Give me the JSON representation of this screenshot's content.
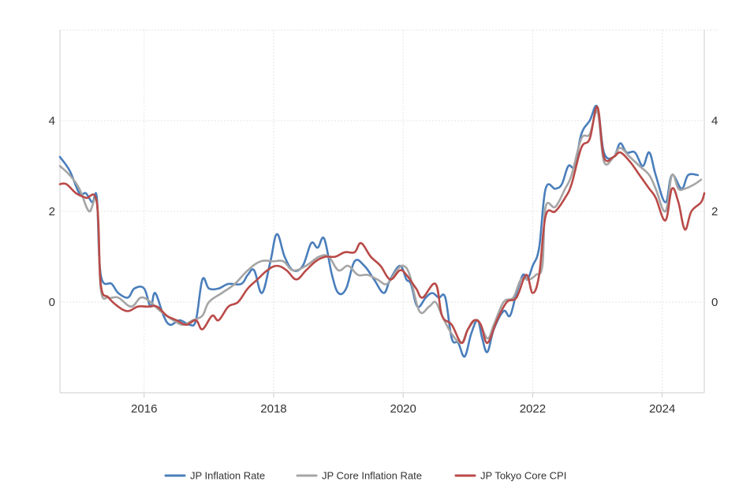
{
  "chart_data": {
    "type": "line",
    "title": "",
    "xlabel": "",
    "ylabel": "",
    "xlim": [
      2014.7,
      2024.65
    ],
    "ylim": [
      -2.0,
      6.0
    ],
    "x_ticks": [
      2016,
      2018,
      2020,
      2022,
      2024
    ],
    "x_tick_labels": [
      "2016",
      "2018",
      "2020",
      "2022",
      "2024"
    ],
    "y_ticks": [
      0,
      2,
      4
    ],
    "y_tick_labels": [
      "0",
      "2",
      "4"
    ],
    "grid": true,
    "dual_y_axis_labels": true,
    "legend_position": "bottom",
    "series": [
      {
        "name": "JP Inflation Rate",
        "color": "#4a7ebb",
        "points": [
          [
            2014.7,
            3.2
          ],
          [
            2014.85,
            2.9
          ],
          [
            2015.0,
            2.4
          ],
          [
            2015.1,
            2.4
          ],
          [
            2015.2,
            2.2
          ],
          [
            2015.27,
            2.3
          ],
          [
            2015.33,
            0.6
          ],
          [
            2015.5,
            0.4
          ],
          [
            2015.6,
            0.2
          ],
          [
            2015.75,
            0.1
          ],
          [
            2015.85,
            0.3
          ],
          [
            2016.0,
            0.3
          ],
          [
            2016.1,
            -0.1
          ],
          [
            2016.17,
            0.2
          ],
          [
            2016.3,
            -0.3
          ],
          [
            2016.4,
            -0.5
          ],
          [
            2016.55,
            -0.4
          ],
          [
            2016.7,
            -0.5
          ],
          [
            2016.8,
            -0.4
          ],
          [
            2016.9,
            0.5
          ],
          [
            2017.0,
            0.3
          ],
          [
            2017.15,
            0.3
          ],
          [
            2017.3,
            0.4
          ],
          [
            2017.5,
            0.4
          ],
          [
            2017.6,
            0.6
          ],
          [
            2017.7,
            0.7
          ],
          [
            2017.82,
            0.2
          ],
          [
            2017.95,
            0.9
          ],
          [
            2018.05,
            1.5
          ],
          [
            2018.17,
            1.0
          ],
          [
            2018.3,
            0.7
          ],
          [
            2018.45,
            0.8
          ],
          [
            2018.58,
            1.3
          ],
          [
            2018.68,
            1.2
          ],
          [
            2018.78,
            1.4
          ],
          [
            2018.9,
            0.6
          ],
          [
            2019.0,
            0.2
          ],
          [
            2019.12,
            0.3
          ],
          [
            2019.25,
            0.9
          ],
          [
            2019.4,
            0.8
          ],
          [
            2019.55,
            0.5
          ],
          [
            2019.7,
            0.2
          ],
          [
            2019.8,
            0.5
          ],
          [
            2019.95,
            0.8
          ],
          [
            2020.05,
            0.5
          ],
          [
            2020.12,
            0.4
          ],
          [
            2020.22,
            -0.1
          ],
          [
            2020.35,
            0.1
          ],
          [
            2020.45,
            0.2
          ],
          [
            2020.55,
            0.1
          ],
          [
            2020.65,
            0.1
          ],
          [
            2020.75,
            -0.8
          ],
          [
            2020.85,
            -0.9
          ],
          [
            2020.95,
            -1.2
          ],
          [
            2021.05,
            -0.7
          ],
          [
            2021.15,
            -0.4
          ],
          [
            2021.22,
            -0.8
          ],
          [
            2021.3,
            -1.1
          ],
          [
            2021.4,
            -0.6
          ],
          [
            2021.55,
            -0.2
          ],
          [
            2021.65,
            -0.3
          ],
          [
            2021.75,
            0.2
          ],
          [
            2021.85,
            0.6
          ],
          [
            2021.92,
            0.5
          ],
          [
            2022.0,
            0.8
          ],
          [
            2022.1,
            1.2
          ],
          [
            2022.2,
            2.5
          ],
          [
            2022.35,
            2.5
          ],
          [
            2022.45,
            2.6
          ],
          [
            2022.55,
            3.0
          ],
          [
            2022.65,
            3.0
          ],
          [
            2022.75,
            3.7
          ],
          [
            2022.88,
            4.0
          ],
          [
            2023.0,
            4.3
          ],
          [
            2023.1,
            3.3
          ],
          [
            2023.25,
            3.2
          ],
          [
            2023.35,
            3.5
          ],
          [
            2023.45,
            3.3
          ],
          [
            2023.58,
            3.3
          ],
          [
            2023.7,
            3.0
          ],
          [
            2023.8,
            3.3
          ],
          [
            2023.9,
            2.8
          ],
          [
            2024.05,
            2.2
          ],
          [
            2024.15,
            2.8
          ],
          [
            2024.3,
            2.5
          ],
          [
            2024.4,
            2.8
          ],
          [
            2024.55,
            2.8
          ]
        ]
      },
      {
        "name": "JP Core Inflation Rate",
        "color": "#a5a5a5",
        "points": [
          [
            2014.7,
            3.0
          ],
          [
            2014.85,
            2.8
          ],
          [
            2015.0,
            2.5
          ],
          [
            2015.15,
            2.0
          ],
          [
            2015.27,
            2.2
          ],
          [
            2015.33,
            0.3
          ],
          [
            2015.45,
            0.1
          ],
          [
            2015.6,
            0.1
          ],
          [
            2015.8,
            -0.1
          ],
          [
            2015.95,
            0.1
          ],
          [
            2016.1,
            0.0
          ],
          [
            2016.25,
            -0.2
          ],
          [
            2016.45,
            -0.4
          ],
          [
            2016.6,
            -0.5
          ],
          [
            2016.75,
            -0.4
          ],
          [
            2016.9,
            -0.3
          ],
          [
            2017.0,
            0.0
          ],
          [
            2017.2,
            0.2
          ],
          [
            2017.4,
            0.4
          ],
          [
            2017.6,
            0.7
          ],
          [
            2017.8,
            0.9
          ],
          [
            2018.0,
            0.9
          ],
          [
            2018.15,
            0.9
          ],
          [
            2018.3,
            0.7
          ],
          [
            2018.5,
            0.8
          ],
          [
            2018.7,
            1.0
          ],
          [
            2018.85,
            1.0
          ],
          [
            2019.0,
            0.7
          ],
          [
            2019.15,
            0.8
          ],
          [
            2019.3,
            0.6
          ],
          [
            2019.45,
            0.6
          ],
          [
            2019.6,
            0.5
          ],
          [
            2019.75,
            0.4
          ],
          [
            2019.9,
            0.7
          ],
          [
            2020.0,
            0.8
          ],
          [
            2020.1,
            0.6
          ],
          [
            2020.25,
            -0.2
          ],
          [
            2020.4,
            -0.1
          ],
          [
            2020.5,
            0.0
          ],
          [
            2020.6,
            -0.3
          ],
          [
            2020.75,
            -0.7
          ],
          [
            2020.9,
            -0.9
          ],
          [
            2021.0,
            -0.6
          ],
          [
            2021.15,
            -0.4
          ],
          [
            2021.3,
            -0.8
          ],
          [
            2021.4,
            -0.5
          ],
          [
            2021.55,
            0.0
          ],
          [
            2021.7,
            0.1
          ],
          [
            2021.82,
            0.5
          ],
          [
            2021.95,
            0.5
          ],
          [
            2022.05,
            0.6
          ],
          [
            2022.15,
            0.8
          ],
          [
            2022.2,
            2.1
          ],
          [
            2022.35,
            2.1
          ],
          [
            2022.5,
            2.5
          ],
          [
            2022.6,
            2.8
          ],
          [
            2022.75,
            3.6
          ],
          [
            2022.88,
            3.7
          ],
          [
            2023.0,
            4.2
          ],
          [
            2023.1,
            3.1
          ],
          [
            2023.25,
            3.2
          ],
          [
            2023.35,
            3.4
          ],
          [
            2023.5,
            3.2
          ],
          [
            2023.65,
            3.0
          ],
          [
            2023.8,
            2.8
          ],
          [
            2023.9,
            2.5
          ],
          [
            2024.05,
            2.0
          ],
          [
            2024.15,
            2.8
          ],
          [
            2024.25,
            2.5
          ],
          [
            2024.35,
            2.5
          ],
          [
            2024.5,
            2.6
          ],
          [
            2024.6,
            2.7
          ]
        ]
      },
      {
        "name": "JP Tokyo Core CPI",
        "color": "#b94a48",
        "points": [
          [
            2014.7,
            2.6
          ],
          [
            2014.8,
            2.6
          ],
          [
            2014.95,
            2.4
          ],
          [
            2015.1,
            2.3
          ],
          [
            2015.27,
            2.2
          ],
          [
            2015.33,
            0.4
          ],
          [
            2015.45,
            0.1
          ],
          [
            2015.6,
            -0.1
          ],
          [
            2015.75,
            -0.2
          ],
          [
            2015.9,
            -0.1
          ],
          [
            2016.05,
            -0.1
          ],
          [
            2016.2,
            -0.1
          ],
          [
            2016.35,
            -0.3
          ],
          [
            2016.5,
            -0.4
          ],
          [
            2016.65,
            -0.5
          ],
          [
            2016.8,
            -0.4
          ],
          [
            2016.9,
            -0.6
          ],
          [
            2017.05,
            -0.3
          ],
          [
            2017.15,
            -0.4
          ],
          [
            2017.3,
            -0.1
          ],
          [
            2017.45,
            0.0
          ],
          [
            2017.6,
            0.3
          ],
          [
            2017.75,
            0.5
          ],
          [
            2017.9,
            0.7
          ],
          [
            2018.05,
            0.8
          ],
          [
            2018.2,
            0.7
          ],
          [
            2018.35,
            0.5
          ],
          [
            2018.5,
            0.7
          ],
          [
            2018.65,
            0.9
          ],
          [
            2018.8,
            1.0
          ],
          [
            2018.95,
            1.0
          ],
          [
            2019.1,
            1.1
          ],
          [
            2019.25,
            1.1
          ],
          [
            2019.35,
            1.3
          ],
          [
            2019.5,
            1.0
          ],
          [
            2019.65,
            0.8
          ],
          [
            2019.8,
            0.5
          ],
          [
            2019.95,
            0.7
          ],
          [
            2020.05,
            0.6
          ],
          [
            2020.2,
            0.3
          ],
          [
            2020.3,
            0.1
          ],
          [
            2020.5,
            0.4
          ],
          [
            2020.6,
            -0.3
          ],
          [
            2020.75,
            -0.5
          ],
          [
            2020.9,
            -0.9
          ],
          [
            2021.0,
            -0.6
          ],
          [
            2021.1,
            -0.4
          ],
          [
            2021.2,
            -0.5
          ],
          [
            2021.3,
            -0.9
          ],
          [
            2021.45,
            -0.4
          ],
          [
            2021.6,
            0.0
          ],
          [
            2021.75,
            0.1
          ],
          [
            2021.9,
            0.6
          ],
          [
            2022.0,
            0.2
          ],
          [
            2022.1,
            0.6
          ],
          [
            2022.2,
            1.9
          ],
          [
            2022.35,
            2.0
          ],
          [
            2022.5,
            2.3
          ],
          [
            2022.6,
            2.6
          ],
          [
            2022.75,
            3.4
          ],
          [
            2022.88,
            3.6
          ],
          [
            2023.0,
            4.3
          ],
          [
            2023.1,
            3.2
          ],
          [
            2023.25,
            3.2
          ],
          [
            2023.35,
            3.3
          ],
          [
            2023.5,
            3.1
          ],
          [
            2023.65,
            2.8
          ],
          [
            2023.8,
            2.5
          ],
          [
            2023.9,
            2.3
          ],
          [
            2024.05,
            1.8
          ],
          [
            2024.15,
            2.5
          ],
          [
            2024.25,
            2.2
          ],
          [
            2024.35,
            1.6
          ],
          [
            2024.45,
            2.0
          ],
          [
            2024.6,
            2.2
          ],
          [
            2024.65,
            2.4
          ]
        ]
      }
    ]
  }
}
